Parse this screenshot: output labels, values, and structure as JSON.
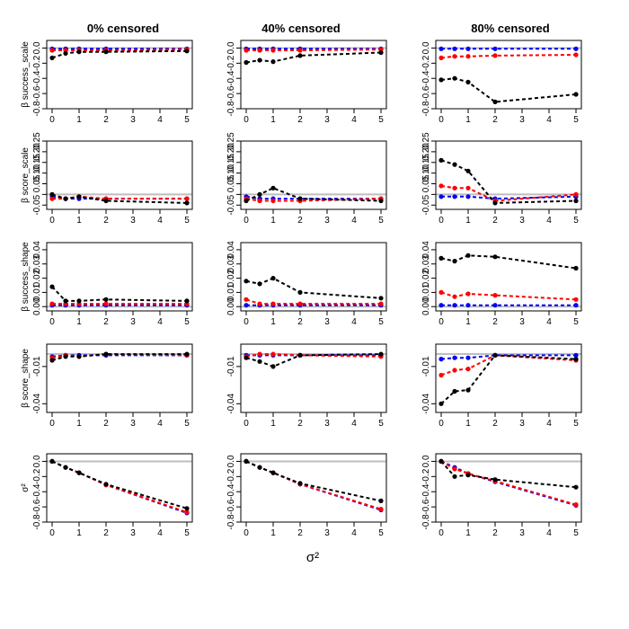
{
  "chart_data": {
    "type": "line",
    "column_titles": [
      "0% censored",
      "40% censored",
      "80% censored"
    ],
    "row_labels": [
      "β success_scale",
      "β score_scale",
      "β success_shape",
      "β score_shape",
      "σ²"
    ],
    "xlabel": "σ²",
    "x": [
      0,
      0.5,
      1,
      2,
      5
    ],
    "xticks": [
      "0",
      "1",
      "2",
      "3",
      "4",
      "5"
    ],
    "xlim": [
      0,
      5
    ],
    "series_colors": {
      "black": "#000000",
      "red": "#ff0000",
      "blue": "#0000ff",
      "reference": "#bebebe"
    },
    "rows": [
      {
        "ylim": [
          -0.8,
          0.1
        ],
        "yticks": [
          0.0,
          -0.2,
          -0.4,
          -0.6,
          -0.8
        ],
        "ytick_labels": [
          "0.0",
          "-0.2",
          "-0.4",
          "-0.6",
          "-0.8"
        ],
        "panels": [
          {
            "series": [
              {
                "name": "black",
                "values": [
                  -0.13,
                  -0.07,
                  -0.05,
                  -0.05,
                  -0.04
                ]
              },
              {
                "name": "red",
                "values": [
                  -0.03,
                  -0.03,
                  -0.03,
                  -0.03,
                  -0.02
                ]
              },
              {
                "name": "blue",
                "values": [
                  -0.01,
                  -0.01,
                  -0.01,
                  -0.01,
                  -0.01
                ]
              }
            ]
          },
          {
            "series": [
              {
                "name": "black",
                "values": [
                  -0.19,
                  -0.16,
                  -0.18,
                  -0.1,
                  -0.06
                ]
              },
              {
                "name": "red",
                "values": [
                  -0.03,
                  -0.03,
                  -0.03,
                  -0.03,
                  -0.02
                ]
              },
              {
                "name": "blue",
                "values": [
                  -0.01,
                  -0.01,
                  -0.01,
                  -0.01,
                  -0.01
                ]
              }
            ]
          },
          {
            "series": [
              {
                "name": "black",
                "values": [
                  -0.42,
                  -0.4,
                  -0.45,
                  -0.71,
                  -0.61
                ]
              },
              {
                "name": "red",
                "values": [
                  -0.13,
                  -0.11,
                  -0.11,
                  -0.1,
                  -0.09
                ]
              },
              {
                "name": "blue",
                "values": [
                  -0.01,
                  -0.01,
                  -0.01,
                  -0.01,
                  -0.01
                ]
              }
            ]
          }
        ]
      },
      {
        "ylim": [
          -0.07,
          0.25
        ],
        "yticks": [
          -0.05,
          0.0,
          0.05,
          0.1,
          0.15,
          0.2,
          0.25
        ],
        "ytick_labels": [
          "-0.05",
          "",
          "0.05",
          "0.10",
          "0.15",
          "0.20",
          "0.25"
        ],
        "panels": [
          {
            "series": [
              {
                "name": "black",
                "values": [
                  0.0,
                  -0.02,
                  -0.01,
                  -0.03,
                  -0.04
                ]
              },
              {
                "name": "red",
                "values": [
                  -0.02,
                  -0.02,
                  -0.01,
                  -0.02,
                  -0.02
                ]
              },
              {
                "name": "blue",
                "values": [
                  -0.01,
                  -0.02,
                  -0.02,
                  -0.02,
                  -0.02
                ]
              }
            ]
          },
          {
            "series": [
              {
                "name": "black",
                "values": [
                  -0.03,
                  0.0,
                  0.03,
                  -0.02,
                  -0.03
                ]
              },
              {
                "name": "red",
                "values": [
                  -0.02,
                  -0.03,
                  -0.03,
                  -0.03,
                  -0.02
                ]
              },
              {
                "name": "blue",
                "values": [
                  -0.01,
                  -0.02,
                  -0.02,
                  -0.02,
                  -0.02
                ]
              }
            ]
          },
          {
            "series": [
              {
                "name": "black",
                "values": [
                  0.16,
                  0.14,
                  0.11,
                  -0.04,
                  -0.03
                ]
              },
              {
                "name": "red",
                "values": [
                  0.04,
                  0.03,
                  0.03,
                  -0.03,
                  0.0
                ]
              },
              {
                "name": "blue",
                "values": [
                  -0.01,
                  -0.01,
                  -0.01,
                  -0.02,
                  -0.01
                ]
              }
            ]
          }
        ]
      },
      {
        "ylim": [
          -0.003,
          0.045
        ],
        "yticks": [
          0.0,
          0.01,
          0.02,
          0.03,
          0.04
        ],
        "ytick_labels": [
          "0.00",
          "0.01",
          "0.02",
          "0.03",
          "0.04"
        ],
        "panels": [
          {
            "series": [
              {
                "name": "black",
                "values": [
                  0.014,
                  0.004,
                  0.004,
                  0.005,
                  0.004
                ]
              },
              {
                "name": "red",
                "values": [
                  0.002,
                  0.002,
                  0.002,
                  0.002,
                  0.002
                ]
              },
              {
                "name": "blue",
                "values": [
                  0.001,
                  0.001,
                  0.001,
                  0.001,
                  0.001
                ]
              }
            ]
          },
          {
            "series": [
              {
                "name": "black",
                "values": [
                  0.018,
                  0.016,
                  0.02,
                  0.01,
                  0.006
                ]
              },
              {
                "name": "red",
                "values": [
                  0.005,
                  0.002,
                  0.002,
                  0.002,
                  0.002
                ]
              },
              {
                "name": "blue",
                "values": [
                  0.001,
                  0.001,
                  0.001,
                  0.001,
                  0.001
                ]
              }
            ]
          },
          {
            "series": [
              {
                "name": "black",
                "values": [
                  0.034,
                  0.032,
                  0.036,
                  0.035,
                  0.027
                ]
              },
              {
                "name": "red",
                "values": [
                  0.01,
                  0.007,
                  0.009,
                  0.008,
                  0.005
                ]
              },
              {
                "name": "blue",
                "values": [
                  0.001,
                  0.001,
                  0.001,
                  0.001,
                  0.001
                ]
              }
            ]
          }
        ]
      },
      {
        "ylim": [
          -0.047,
          0.008
        ],
        "yticks": [
          -0.01,
          -0.04
        ],
        "ytick_labels": [
          "-0.01",
          "-0.04"
        ],
        "panels": [
          {
            "series": [
              {
                "name": "black",
                "values": [
                  -0.005,
                  -0.002,
                  -0.002,
                  0.0,
                  0.0
                ]
              },
              {
                "name": "red",
                "values": [
                  -0.003,
                  -0.001,
                  -0.002,
                  0.0,
                  -0.001
                ]
              },
              {
                "name": "blue",
                "values": [
                  -0.002,
                  -0.001,
                  -0.001,
                  -0.001,
                  -0.001
                ]
              }
            ]
          },
          {
            "series": [
              {
                "name": "black",
                "values": [
                  -0.003,
                  -0.006,
                  -0.01,
                  -0.001,
                  0.0
                ]
              },
              {
                "name": "red",
                "values": [
                  -0.002,
                  0.0,
                  0.0,
                  -0.001,
                  -0.002
                ]
              },
              {
                "name": "blue",
                "values": [
                  -0.001,
                  -0.001,
                  -0.001,
                  -0.001,
                  -0.001
                ]
              }
            ]
          },
          {
            "series": [
              {
                "name": "black",
                "values": [
                  -0.04,
                  -0.03,
                  -0.029,
                  -0.001,
                  -0.004
                ]
              },
              {
                "name": "red",
                "values": [
                  -0.017,
                  -0.013,
                  -0.012,
                  -0.001,
                  -0.005
                ]
              },
              {
                "name": "blue",
                "values": [
                  -0.004,
                  -0.003,
                  -0.003,
                  -0.001,
                  -0.001
                ]
              }
            ]
          }
        ]
      },
      {
        "ylim": [
          -0.8,
          0.1
        ],
        "yticks": [
          0.0,
          -0.2,
          -0.4,
          -0.6,
          -0.8
        ],
        "ytick_labels": [
          "0.0",
          "-0.2",
          "-0.4",
          "-0.6",
          "-0.8"
        ],
        "panels": [
          {
            "series": [
              {
                "name": "black",
                "values": [
                  0.0,
                  -0.08,
                  -0.15,
                  -0.3,
                  -0.62
                ]
              },
              {
                "name": "red",
                "values": [
                  0.0,
                  -0.08,
                  -0.15,
                  -0.31,
                  -0.67
                ]
              },
              {
                "name": "blue",
                "values": [
                  0.0,
                  -0.08,
                  -0.15,
                  -0.31,
                  -0.68
                ]
              }
            ]
          },
          {
            "series": [
              {
                "name": "black",
                "values": [
                  0.0,
                  -0.08,
                  -0.15,
                  -0.29,
                  -0.52
                ]
              },
              {
                "name": "red",
                "values": [
                  0.0,
                  -0.08,
                  -0.15,
                  -0.3,
                  -0.63
                ]
              },
              {
                "name": "blue",
                "values": [
                  0.0,
                  -0.08,
                  -0.15,
                  -0.3,
                  -0.64
                ]
              }
            ]
          },
          {
            "series": [
              {
                "name": "black",
                "values": [
                  0.0,
                  -0.2,
                  -0.18,
                  -0.24,
                  -0.34
                ]
              },
              {
                "name": "red",
                "values": [
                  0.0,
                  -0.1,
                  -0.16,
                  -0.26,
                  -0.57
                ]
              },
              {
                "name": "blue",
                "values": [
                  0.0,
                  -0.08,
                  -0.16,
                  -0.27,
                  -0.58
                ]
              }
            ]
          }
        ]
      }
    ]
  }
}
